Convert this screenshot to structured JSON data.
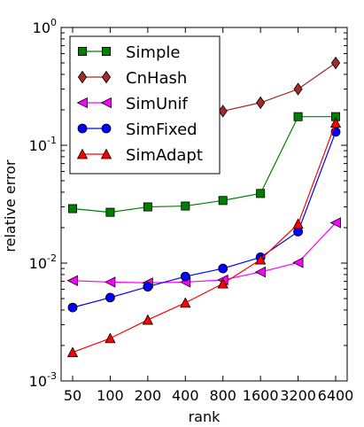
{
  "chart_data": {
    "type": "line",
    "xlabel": "rank",
    "ylabel": "relative error",
    "y_scale": "log",
    "x_scale": "log2",
    "ylim": [
      0.001,
      1
    ],
    "x_ticks": [
      "50",
      "100",
      "200",
      "400",
      "800",
      "1600",
      "3200",
      "6400"
    ],
    "y_ticks": [
      {
        "base": "10",
        "exp": "0"
      },
      {
        "base": "10",
        "exp": "-1"
      },
      {
        "base": "10",
        "exp": "-2"
      },
      {
        "base": "10",
        "exp": "-3"
      }
    ],
    "x": [
      50,
      100,
      200,
      400,
      800,
      1600,
      3200,
      6400
    ],
    "legend_position": "upper-left",
    "series": [
      {
        "name": "Simple",
        "color": "#007f00",
        "marker": "square",
        "values": [
          0.029,
          0.027,
          0.03,
          0.0305,
          0.034,
          0.039,
          0.175,
          0.175
        ]
      },
      {
        "name": "CnHash",
        "color": "#a52a2a",
        "marker": "diamond",
        "values": [
          null,
          null,
          null,
          null,
          0.195,
          0.23,
          0.3,
          0.5
        ]
      },
      {
        "name": "SimUnif",
        "color": "#ff00ff",
        "marker": "triangle-left",
        "values": [
          0.0071,
          0.0069,
          0.0068,
          0.0069,
          0.0072,
          0.0084,
          0.0101,
          0.022
        ]
      },
      {
        "name": "SimFixed",
        "color": "#0000ff",
        "marker": "circle",
        "values": [
          0.0042,
          0.0051,
          0.0063,
          0.0077,
          0.009,
          0.0112,
          0.0185,
          0.13
        ]
      },
      {
        "name": "SimAdapt",
        "color": "#ff0000",
        "marker": "triangle-up",
        "values": [
          0.00175,
          0.0023,
          0.0033,
          0.0046,
          0.0067,
          0.0107,
          0.0215,
          0.155
        ]
      }
    ]
  }
}
